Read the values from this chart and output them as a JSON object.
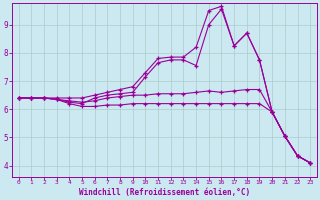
{
  "xlabel": "Windchill (Refroidissement éolien,°C)",
  "background_color": "#cce8f0",
  "grid_color": "#aacccc",
  "line_color": "#990099",
  "xlim": [
    -0.5,
    23.5
  ],
  "ylim": [
    3.6,
    9.75
  ],
  "xticks": [
    0,
    1,
    2,
    3,
    4,
    5,
    6,
    7,
    8,
    9,
    10,
    11,
    12,
    13,
    14,
    15,
    16,
    17,
    18,
    19,
    20,
    21,
    22,
    23
  ],
  "yticks": [
    4,
    5,
    6,
    7,
    8,
    9
  ],
  "series": [
    [
      6.4,
      6.4,
      6.4,
      6.4,
      6.4,
      6.4,
      6.5,
      6.6,
      6.7,
      6.8,
      7.3,
      7.8,
      7.85,
      7.85,
      8.2,
      9.5,
      9.65,
      8.25,
      8.7,
      7.75,
      5.9,
      5.05,
      4.35,
      4.1
    ],
    [
      6.4,
      6.4,
      6.4,
      6.35,
      6.25,
      6.2,
      6.4,
      6.5,
      6.55,
      6.6,
      7.15,
      7.65,
      7.75,
      7.75,
      7.55,
      9.0,
      9.55,
      8.25,
      8.7,
      7.75,
      5.9,
      5.05,
      4.35,
      4.1
    ],
    [
      6.4,
      6.4,
      6.4,
      6.35,
      6.3,
      6.25,
      6.3,
      6.4,
      6.45,
      6.5,
      6.5,
      6.55,
      6.55,
      6.55,
      6.6,
      6.65,
      6.6,
      6.65,
      6.7,
      6.7,
      5.9,
      5.05,
      4.35,
      4.1
    ],
    [
      6.4,
      6.4,
      6.4,
      6.35,
      6.2,
      6.1,
      6.1,
      6.15,
      6.15,
      6.2,
      6.2,
      6.2,
      6.2,
      6.2,
      6.2,
      6.2,
      6.2,
      6.2,
      6.2,
      6.2,
      5.9,
      5.05,
      4.35,
      4.1
    ]
  ]
}
